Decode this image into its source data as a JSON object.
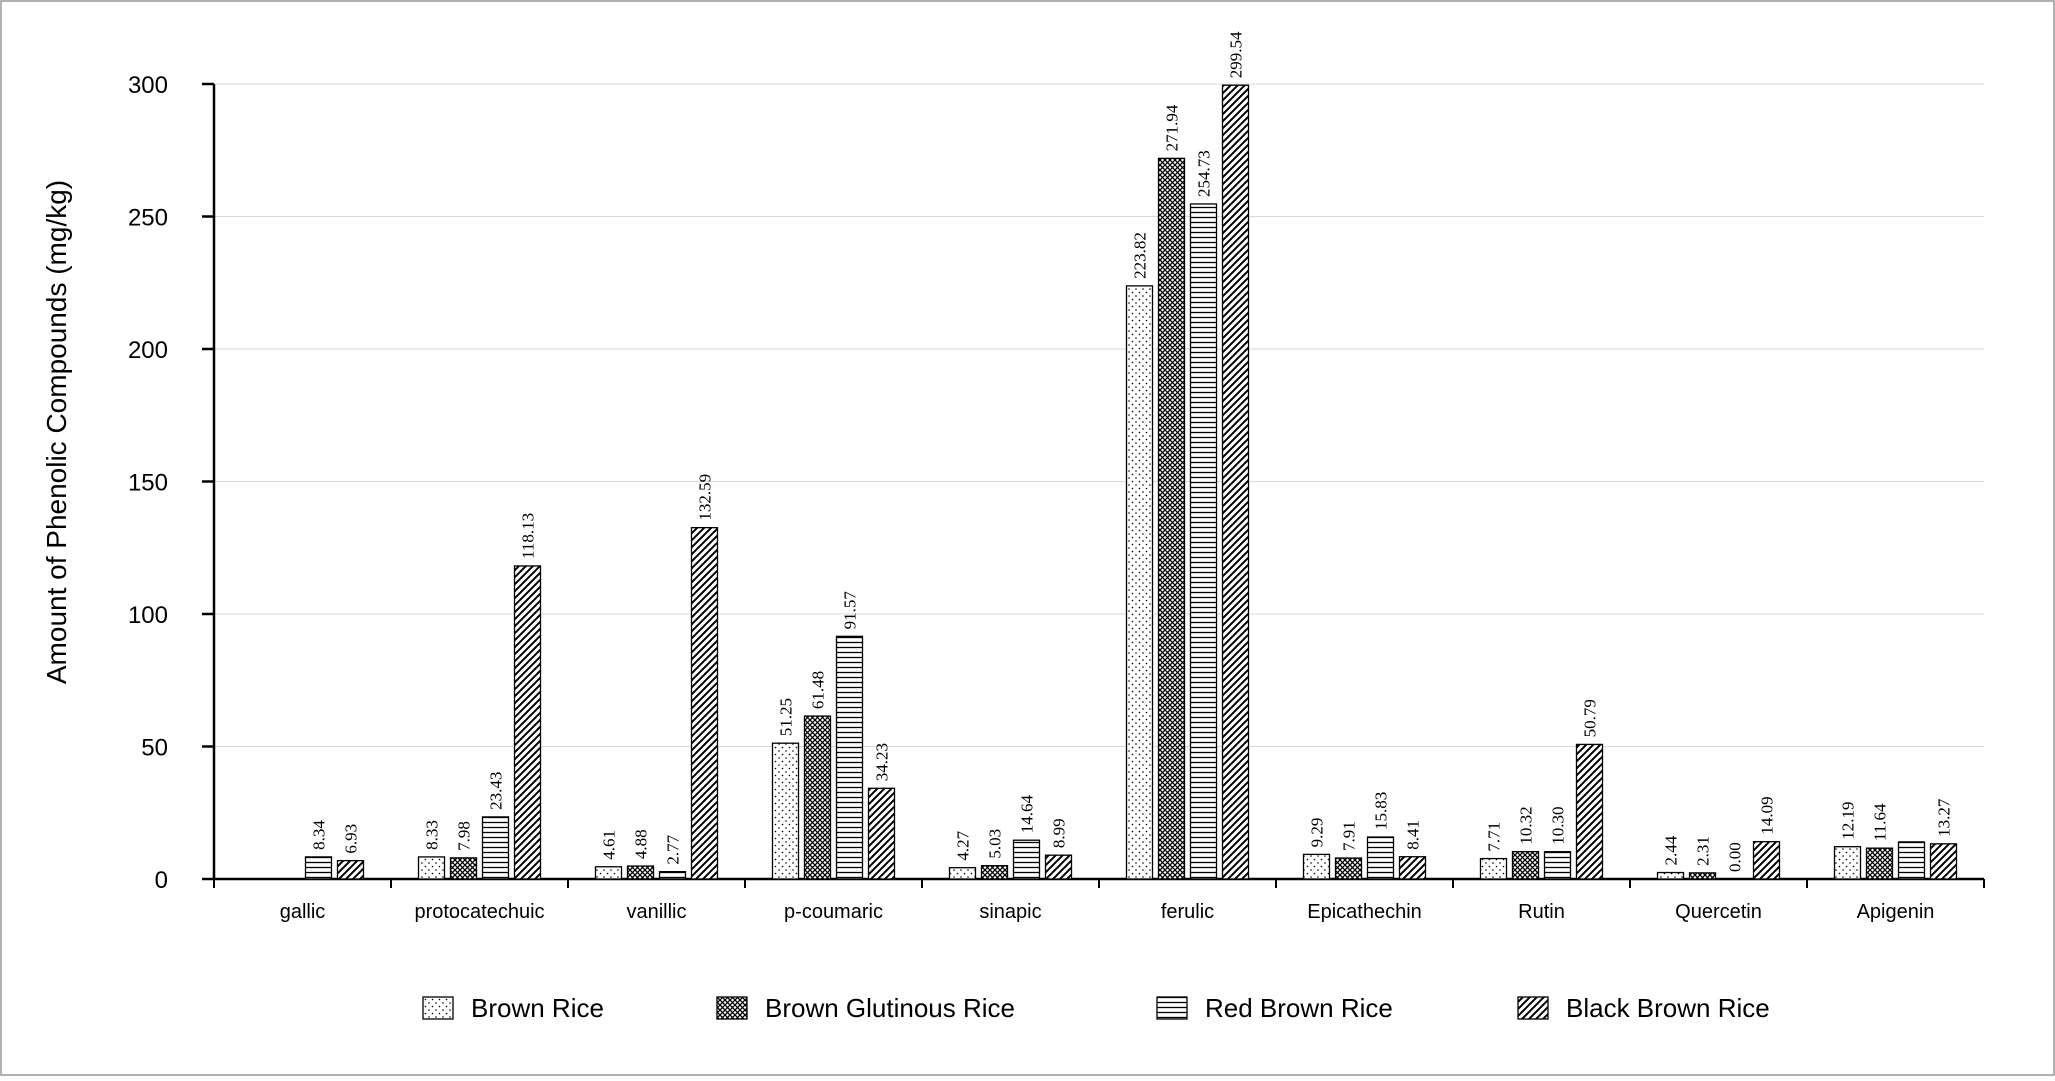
{
  "chart_data": {
    "type": "bar",
    "y_label": "Amount of Phenolic Compounds (mg/kg)",
    "categories": [
      "gallic",
      "protocatechuic",
      "vanillic",
      "p-coumaric",
      "sinapic",
      "ferulic",
      "Epicathechin",
      "Rutin",
      "Quercetin",
      "Apigenin"
    ],
    "series": [
      {
        "name": "Brown Rice",
        "color": "#000000",
        "pattern": "dots",
        "values": [
          null,
          8.33,
          4.61,
          51.25,
          4.27,
          223.82,
          9.29,
          7.71,
          2.44,
          12.19
        ],
        "value_labels": [
          null,
          "8.33",
          "4.61",
          "51.25",
          "4.27",
          "223.82",
          "9.29",
          "7.71",
          "2.44",
          "12.19"
        ]
      },
      {
        "name": "Brown Glutinous Rice",
        "color": "#000000",
        "pattern": "crosshatch",
        "values": [
          null,
          7.98,
          4.88,
          61.48,
          5.03,
          271.94,
          7.91,
          10.32,
          2.31,
          11.64
        ],
        "value_labels": [
          null,
          "7.98",
          "4.88",
          "61.48",
          "5.03",
          "271.94",
          "7.91",
          "10.32",
          "2.31",
          "11.64"
        ]
      },
      {
        "name": "Red Brown Rice",
        "color": "#000000",
        "pattern": "horizontal",
        "values": [
          8.34,
          23.43,
          2.77,
          91.57,
          14.64,
          254.73,
          15.83,
          10.3,
          0,
          14
        ],
        "value_labels": [
          "8.34",
          "23.43",
          "2.77",
          "91.57",
          "14.64",
          "254.73",
          "15.83",
          "10.30",
          "0.00",
          null
        ]
      },
      {
        "name": "Black Brown Rice",
        "color": "#000000",
        "pattern": "diagonal",
        "values": [
          6.93,
          118.13,
          132.59,
          34.23,
          8.99,
          299.54,
          8.41,
          50.79,
          14.09,
          13.27
        ],
        "value_labels": [
          "6.93",
          "118.13",
          "132.59",
          "34.23",
          "8.99",
          "299.54",
          "8.41",
          "50.79",
          "14.09",
          "13.27"
        ]
      }
    ],
    "ylim": [
      0,
      300
    ],
    "yticks": [
      0,
      50,
      100,
      150,
      200,
      250,
      300
    ],
    "grid": true
  }
}
